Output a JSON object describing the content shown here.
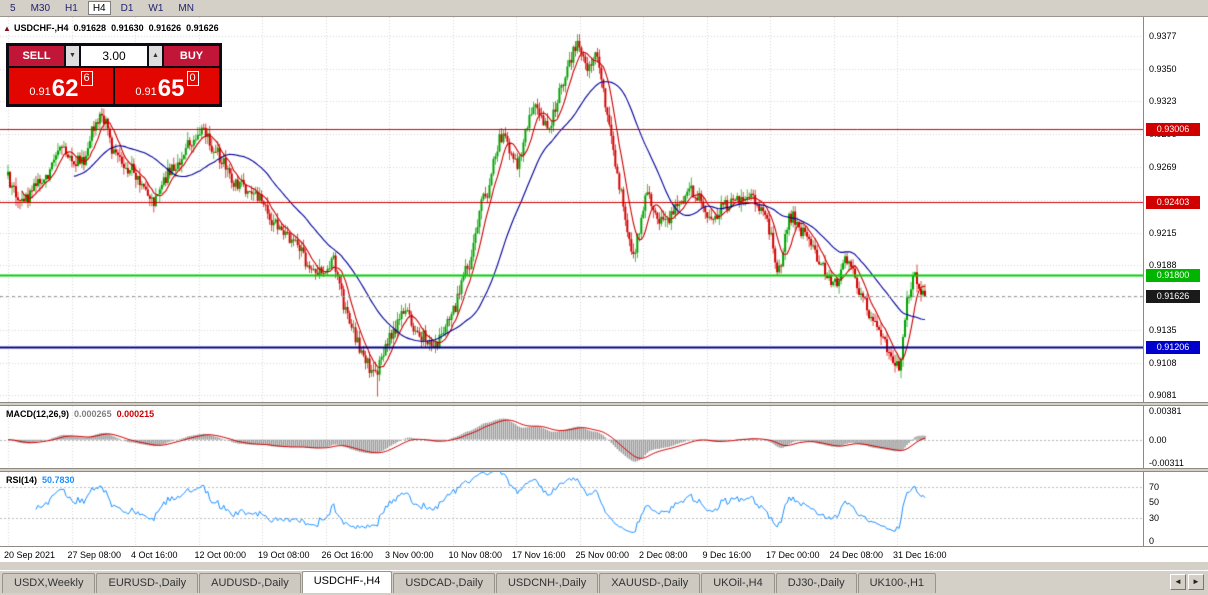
{
  "toolbar": {
    "periods": [
      {
        "label": "5",
        "active": false
      },
      {
        "label": "M30",
        "active": false
      },
      {
        "label": "H1",
        "active": false
      },
      {
        "label": "H4",
        "active": true
      },
      {
        "label": "D1",
        "active": false
      },
      {
        "label": "W1",
        "active": false
      },
      {
        "label": "MN",
        "active": false
      }
    ]
  },
  "chart_header": {
    "toggle_icon": "▲",
    "symbol": "USDCHF-,H4",
    "open": "0.91628",
    "high": "0.91630",
    "low": "0.91626",
    "close": "0.91626"
  },
  "trade_panel": {
    "sell_label": "SELL",
    "buy_label": "BUY",
    "volume": "3.00",
    "volume_down_icon": "▼",
    "volume_up_icon": "▲",
    "bid": {
      "prefix": "0.91",
      "big": "62",
      "pip": "6"
    },
    "ask": {
      "prefix": "0.91",
      "big": "65",
      "pip": "0"
    }
  },
  "price_axis": {
    "ticks": [
      "0.9377",
      "0.9350",
      "0.9323",
      "0.9296",
      "0.9269",
      "0.9242",
      "0.9215",
      "0.9188",
      "0.9162",
      "0.9135",
      "0.9108",
      "0.9081"
    ],
    "badges": [
      {
        "label": "0.93006",
        "price": 0.93006,
        "color": "#d00000"
      },
      {
        "label": "0.92403",
        "price": 0.92403,
        "color": "#d00000"
      },
      {
        "label": "0.91800",
        "price": 0.918,
        "color": "#00b400"
      },
      {
        "label": "0.91626",
        "price": 0.91626,
        "color": "#1a1a1a"
      },
      {
        "label": "0.91206",
        "price": 0.91206,
        "color": "#0000cc"
      }
    ]
  },
  "macd": {
    "name": "MACD(12,26,9)",
    "value_main": "0.000265",
    "value_signal": "0.000215",
    "axis": [
      "0.00381",
      "0.00",
      "-0.00311"
    ]
  },
  "rsi": {
    "name": "RSI(14)",
    "value": "50.7830",
    "axis": [
      "70",
      "50",
      "30",
      "0"
    ]
  },
  "tabs": {
    "items": [
      {
        "label": "USDX,Weekly",
        "active": false
      },
      {
        "label": "EURUSD-,Daily",
        "active": false
      },
      {
        "label": "AUDUSD-,Daily",
        "active": false
      },
      {
        "label": "USDCHF-,H4",
        "active": true
      },
      {
        "label": "USDCAD-,Daily",
        "active": false
      },
      {
        "label": "USDCNH-,Daily",
        "active": false
      },
      {
        "label": "XAUUSD-,Daily",
        "active": false
      },
      {
        "label": "UKOil-,H4",
        "active": false
      },
      {
        "label": "DJ30-,Daily",
        "active": false
      },
      {
        "label": "UK100-,H1",
        "active": false
      }
    ],
    "scroll_left_icon": "◄",
    "scroll_right_icon": "►"
  },
  "ui_colors": {
    "sell_button_red": "#c11638",
    "price_box_red": "#e10600",
    "panel_bg": "#0b0b14"
  },
  "chart_data": {
    "type": "candlestick",
    "symbol": "USDCHF",
    "timeframe": "H4",
    "bid": 0.91626,
    "ask": 0.9165,
    "current_ohlc": {
      "open": 0.91628,
      "high": 0.9163,
      "low": 0.91626,
      "close": 0.91626
    },
    "price_axis_top": 0.939,
    "price_axis_bottom": 0.9078,
    "x_labels": [
      "20 Sep 2021",
      "27 Sep 08:00",
      "4 Oct 16:00",
      "12 Oct 00:00",
      "19 Oct 08:00",
      "26 Oct 16:00",
      "3 Nov 00:00",
      "10 Nov 08:00",
      "17 Nov 16:00",
      "25 Nov 00:00",
      "2 Dec 08:00",
      "9 Dec 16:00",
      "17 Dec 00:00",
      "24 Dec 08:00",
      "31 Dec 16:00"
    ],
    "bars": 460,
    "colors": {
      "up": "#00a400",
      "down": "#d40000",
      "grid": "#d9d9d9",
      "macd_hist": "#9c9c9c",
      "macd_signal": "#cc0000",
      "rsi_line": "#1e90ff",
      "bid_line": "#999999"
    },
    "hlines": [
      {
        "price": 0.93006,
        "color": "#d00000",
        "width": 1
      },
      {
        "price": 0.92403,
        "color": "#d00000",
        "width": 1
      },
      {
        "price": 0.918,
        "color": "#00d000",
        "width": 2
      },
      {
        "price": 0.91206,
        "color": "#000088",
        "width": 2
      }
    ],
    "moving_averages": [
      {
        "period": 8,
        "color": "#cc0000"
      },
      {
        "period": 34,
        "color": "#000099"
      }
    ],
    "indicators": [
      {
        "name": "MACD",
        "params": [
          12,
          26,
          9
        ],
        "value_main": 0.000265,
        "value_signal": 0.000215,
        "axis_max": 0.00381,
        "axis_min": -0.00311
      },
      {
        "name": "RSI",
        "params": [
          14
        ],
        "value": 50.783,
        "levels": [
          70,
          30
        ]
      }
    ],
    "wick_spikes": [
      [
        378,
        0.908
      ],
      [
        580,
        0.93775
      ],
      [
        901,
        0.9095
      ]
    ],
    "waypoints": [
      [
        0,
        0.9262
      ],
      [
        0.019,
        0.924
      ],
      [
        0.04,
        0.9256
      ],
      [
        0.062,
        0.9282
      ],
      [
        0.084,
        0.9272
      ],
      [
        0.1,
        0.9306
      ],
      [
        0.109,
        0.931
      ],
      [
        0.12,
        0.9276
      ],
      [
        0.139,
        0.9266
      ],
      [
        0.16,
        0.924
      ],
      [
        0.182,
        0.9266
      ],
      [
        0.204,
        0.929
      ],
      [
        0.217,
        0.9297
      ],
      [
        0.231,
        0.928
      ],
      [
        0.251,
        0.9256
      ],
      [
        0.273,
        0.9248
      ],
      [
        0.294,
        0.9222
      ],
      [
        0.314,
        0.9208
      ],
      [
        0.332,
        0.919
      ],
      [
        0.345,
        0.9181
      ],
      [
        0.358,
        0.9192
      ],
      [
        0.375,
        0.9145
      ],
      [
        0.39,
        0.9115
      ],
      [
        0.403,
        0.9098
      ],
      [
        0.419,
        0.9128
      ],
      [
        0.436,
        0.915
      ],
      [
        0.451,
        0.9132
      ],
      [
        0.471,
        0.9124
      ],
      [
        0.489,
        0.9152
      ],
      [
        0.506,
        0.9188
      ],
      [
        0.523,
        0.9244
      ],
      [
        0.542,
        0.9295
      ],
      [
        0.558,
        0.927
      ],
      [
        0.578,
        0.9322
      ],
      [
        0.593,
        0.93
      ],
      [
        0.608,
        0.9338
      ],
      [
        0.624,
        0.937
      ],
      [
        0.635,
        0.9352
      ],
      [
        0.646,
        0.936
      ],
      [
        0.659,
        0.9305
      ],
      [
        0.672,
        0.9245
      ],
      [
        0.685,
        0.9196
      ],
      [
        0.7,
        0.9244
      ],
      [
        0.718,
        0.9222
      ],
      [
        0.735,
        0.9238
      ],
      [
        0.75,
        0.925
      ],
      [
        0.77,
        0.9228
      ],
      [
        0.792,
        0.924
      ],
      [
        0.813,
        0.9247
      ],
      [
        0.831,
        0.9224
      ],
      [
        0.844,
        0.9182
      ],
      [
        0.857,
        0.923
      ],
      [
        0.875,
        0.9212
      ],
      [
        0.892,
        0.9186
      ],
      [
        0.907,
        0.9172
      ],
      [
        0.92,
        0.9196
      ],
      [
        0.936,
        0.9158
      ],
      [
        0.951,
        0.9136
      ],
      [
        0.966,
        0.9114
      ],
      [
        0.975,
        0.9102
      ],
      [
        0.986,
        0.9168
      ],
      [
        0.993,
        0.9183
      ],
      [
        1,
        0.91626
      ]
    ]
  }
}
